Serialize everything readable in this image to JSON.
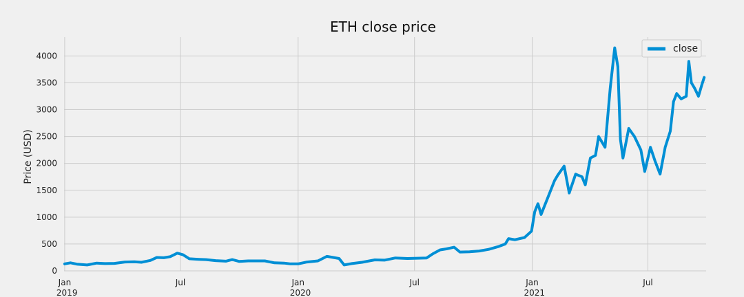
{
  "chart_data": {
    "type": "line",
    "title": "ETH close price",
    "xlabel": "",
    "ylabel": "Price (USD)",
    "xlim": [
      "2018-12-31",
      "2021-09-30"
    ],
    "ylim": [
      0,
      4350
    ],
    "grid": true,
    "legend_placement": "top-right",
    "yticks": [
      0,
      500,
      1000,
      1500,
      2000,
      2500,
      3000,
      3500,
      4000
    ],
    "xticks": [
      {
        "date": "2019-01-01",
        "label": "Jan",
        "sublabel": "2019"
      },
      {
        "date": "2019-07-01",
        "label": "Jul",
        "sublabel": ""
      },
      {
        "date": "2020-01-01",
        "label": "Jan",
        "sublabel": "2020"
      },
      {
        "date": "2020-07-01",
        "label": "Jul",
        "sublabel": ""
      },
      {
        "date": "2021-01-01",
        "label": "Jan",
        "sublabel": "2021"
      },
      {
        "date": "2021-07-01",
        "label": "Jul",
        "sublabel": ""
      }
    ],
    "series": [
      {
        "name": "close",
        "color": "#008fd5",
        "points": [
          [
            "2019-01-01",
            130
          ],
          [
            "2019-01-10",
            150
          ],
          [
            "2019-01-20",
            125
          ],
          [
            "2019-02-05",
            110
          ],
          [
            "2019-02-20",
            145
          ],
          [
            "2019-03-05",
            135
          ],
          [
            "2019-03-20",
            140
          ],
          [
            "2019-04-05",
            165
          ],
          [
            "2019-04-20",
            170
          ],
          [
            "2019-05-01",
            160
          ],
          [
            "2019-05-15",
            195
          ],
          [
            "2019-05-25",
            250
          ],
          [
            "2019-06-05",
            245
          ],
          [
            "2019-06-15",
            265
          ],
          [
            "2019-06-26",
            330
          ],
          [
            "2019-07-05",
            300
          ],
          [
            "2019-07-15",
            225
          ],
          [
            "2019-07-30",
            215
          ],
          [
            "2019-08-10",
            210
          ],
          [
            "2019-08-25",
            190
          ],
          [
            "2019-09-10",
            180
          ],
          [
            "2019-09-20",
            210
          ],
          [
            "2019-10-01",
            175
          ],
          [
            "2019-10-15",
            185
          ],
          [
            "2019-10-30",
            185
          ],
          [
            "2019-11-10",
            185
          ],
          [
            "2019-11-25",
            150
          ],
          [
            "2019-12-10",
            145
          ],
          [
            "2019-12-20",
            130
          ],
          [
            "2020-01-01",
            130
          ],
          [
            "2020-01-15",
            165
          ],
          [
            "2020-02-01",
            185
          ],
          [
            "2020-02-15",
            270
          ],
          [
            "2020-02-25",
            250
          ],
          [
            "2020-03-05",
            230
          ],
          [
            "2020-03-13",
            110
          ],
          [
            "2020-03-25",
            135
          ],
          [
            "2020-04-10",
            160
          ],
          [
            "2020-04-30",
            205
          ],
          [
            "2020-05-15",
            200
          ],
          [
            "2020-06-01",
            240
          ],
          [
            "2020-06-20",
            230
          ],
          [
            "2020-07-05",
            235
          ],
          [
            "2020-07-20",
            240
          ],
          [
            "2020-07-30",
            320
          ],
          [
            "2020-08-10",
            390
          ],
          [
            "2020-08-20",
            410
          ],
          [
            "2020-09-01",
            440
          ],
          [
            "2020-09-10",
            350
          ],
          [
            "2020-09-25",
            355
          ],
          [
            "2020-10-10",
            370
          ],
          [
            "2020-10-25",
            400
          ],
          [
            "2020-11-10",
            455
          ],
          [
            "2020-11-20",
            500
          ],
          [
            "2020-11-25",
            600
          ],
          [
            "2020-12-05",
            580
          ],
          [
            "2020-12-20",
            620
          ],
          [
            "2020-12-31",
            740
          ],
          [
            "2021-01-05",
            1100
          ],
          [
            "2021-01-10",
            1250
          ],
          [
            "2021-01-15",
            1050
          ],
          [
            "2021-01-25",
            1350
          ],
          [
            "2021-02-05",
            1680
          ],
          [
            "2021-02-10",
            1780
          ],
          [
            "2021-02-20",
            1950
          ],
          [
            "2021-02-28",
            1450
          ],
          [
            "2021-03-10",
            1800
          ],
          [
            "2021-03-20",
            1750
          ],
          [
            "2021-03-25",
            1600
          ],
          [
            "2021-04-02",
            2100
          ],
          [
            "2021-04-10",
            2150
          ],
          [
            "2021-04-15",
            2500
          ],
          [
            "2021-04-25",
            2300
          ],
          [
            "2021-05-03",
            3400
          ],
          [
            "2021-05-10",
            4150
          ],
          [
            "2021-05-15",
            3800
          ],
          [
            "2021-05-19",
            2450
          ],
          [
            "2021-05-23",
            2100
          ],
          [
            "2021-06-01",
            2650
          ],
          [
            "2021-06-10",
            2500
          ],
          [
            "2021-06-20",
            2250
          ],
          [
            "2021-06-26",
            1850
          ],
          [
            "2021-07-05",
            2300
          ],
          [
            "2021-07-12",
            2050
          ],
          [
            "2021-07-20",
            1800
          ],
          [
            "2021-07-28",
            2300
          ],
          [
            "2021-08-05",
            2600
          ],
          [
            "2021-08-10",
            3150
          ],
          [
            "2021-08-15",
            3300
          ],
          [
            "2021-08-22",
            3200
          ],
          [
            "2021-08-30",
            3250
          ],
          [
            "2021-09-03",
            3900
          ],
          [
            "2021-09-07",
            3500
          ],
          [
            "2021-09-12",
            3400
          ],
          [
            "2021-09-18",
            3250
          ],
          [
            "2021-09-23",
            3450
          ],
          [
            "2021-09-27",
            3600
          ]
        ]
      }
    ]
  }
}
